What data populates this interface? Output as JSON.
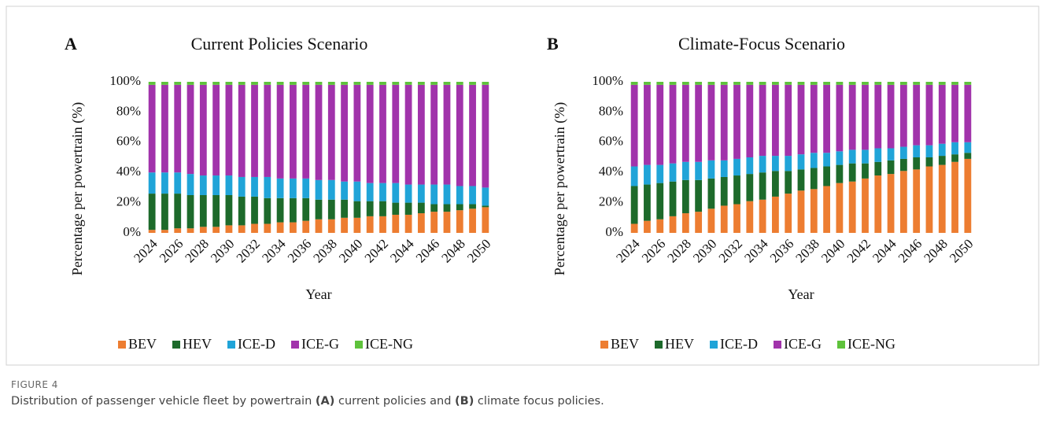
{
  "chart_data": [
    {
      "type": "stacked_bar",
      "panel": "A",
      "title": "Current Policies Scenario",
      "x_label": "Year",
      "y_label": "Percentage per powertrain (%)",
      "categories": [
        "2024",
        null,
        "2026",
        null,
        "2028",
        null,
        "2030",
        null,
        "2032",
        null,
        "2034",
        null,
        "2036",
        null,
        "2038",
        null,
        "2040",
        null,
        "2042",
        null,
        "2044",
        null,
        "2046",
        null,
        "2048",
        null,
        "2050"
      ],
      "ylim": [
        0,
        100
      ],
      "yticks": [
        {
          "value": 0,
          "label": "0%"
        },
        {
          "value": 20,
          "label": "20%"
        },
        {
          "value": 40,
          "label": "40%"
        },
        {
          "value": 60,
          "label": "60%"
        },
        {
          "value": 80,
          "label": "80%"
        },
        {
          "value": 100,
          "label": "100%"
        }
      ],
      "series": [
        {
          "name": "BEV",
          "color": "#ed7d31",
          "values": [
            2,
            2,
            3,
            3,
            4,
            4,
            5,
            5,
            6,
            6,
            7,
            7,
            8,
            9,
            9,
            10,
            10,
            11,
            11,
            12,
            12,
            13,
            14,
            14,
            15,
            16,
            17
          ]
        },
        {
          "name": "HEV",
          "color": "#1d6a2b",
          "values": [
            24,
            24,
            23,
            22,
            21,
            21,
            20,
            19,
            18,
            17,
            16,
            16,
            15,
            13,
            13,
            12,
            11,
            10,
            10,
            8,
            8,
            7,
            5,
            5,
            4,
            3,
            1
          ]
        },
        {
          "name": "ICE-D",
          "color": "#20a4d8",
          "values": [
            14,
            14,
            14,
            14,
            13,
            13,
            13,
            13,
            13,
            14,
            13,
            13,
            13,
            13,
            13,
            12,
            13,
            12,
            12,
            13,
            12,
            12,
            13,
            13,
            12,
            12,
            12
          ]
        },
        {
          "name": "ICE-G",
          "color": "#a133ab",
          "values": [
            58,
            58,
            58,
            59,
            60,
            60,
            60,
            61,
            61,
            61,
            62,
            62,
            62,
            63,
            63,
            64,
            64,
            65,
            65,
            65,
            66,
            66,
            66,
            66,
            67,
            67,
            68
          ]
        },
        {
          "name": "ICE-NG",
          "color": "#5ec23b",
          "values": [
            2,
            2,
            2,
            2,
            2,
            2,
            2,
            2,
            2,
            2,
            2,
            2,
            2,
            2,
            2,
            2,
            2,
            2,
            2,
            2,
            2,
            2,
            2,
            2,
            2,
            2,
            2
          ]
        }
      ]
    },
    {
      "type": "stacked_bar",
      "panel": "B",
      "title": "Climate-Focus Scenario",
      "x_label": "Year",
      "y_label": "Percentage per powertrain (%)",
      "categories": [
        "2024",
        null,
        "2026",
        null,
        "2028",
        null,
        "2030",
        null,
        "2032",
        null,
        "2034",
        null,
        "2036",
        null,
        "2038",
        null,
        "2040",
        null,
        "2042",
        null,
        "2044",
        null,
        "2046",
        null,
        "2048",
        null,
        "2050"
      ],
      "ylim": [
        0,
        100
      ],
      "yticks": [
        {
          "value": 0,
          "label": "0%"
        },
        {
          "value": 20,
          "label": "20%"
        },
        {
          "value": 40,
          "label": "40%"
        },
        {
          "value": 60,
          "label": "60%"
        },
        {
          "value": 80,
          "label": "80%"
        },
        {
          "value": 100,
          "label": "100%"
        }
      ],
      "series": [
        {
          "name": "BEV",
          "color": "#ed7d31",
          "values": [
            6,
            8,
            9,
            11,
            13,
            14,
            16,
            18,
            19,
            21,
            22,
            24,
            26,
            28,
            29,
            31,
            33,
            34,
            36,
            38,
            39,
            41,
            42,
            44,
            45,
            47,
            49
          ]
        },
        {
          "name": "HEV",
          "color": "#1d6a2b",
          "values": [
            25,
            24,
            24,
            23,
            22,
            21,
            20,
            19,
            19,
            18,
            18,
            17,
            15,
            14,
            14,
            13,
            12,
            12,
            10,
            9,
            9,
            8,
            8,
            6,
            6,
            5,
            4
          ]
        },
        {
          "name": "ICE-D",
          "color": "#20a4d8",
          "values": [
            13,
            13,
            12,
            12,
            12,
            12,
            12,
            11,
            11,
            11,
            11,
            10,
            10,
            10,
            10,
            9,
            9,
            9,
            9,
            9,
            8,
            8,
            8,
            8,
            8,
            8,
            7
          ]
        },
        {
          "name": "ICE-G",
          "color": "#a133ab",
          "values": [
            54,
            53,
            53,
            52,
            51,
            51,
            50,
            50,
            49,
            48,
            47,
            47,
            47,
            46,
            45,
            45,
            44,
            43,
            43,
            42,
            42,
            41,
            40,
            40,
            39,
            38,
            38
          ]
        },
        {
          "name": "ICE-NG",
          "color": "#5ec23b",
          "values": [
            2,
            2,
            2,
            2,
            2,
            2,
            2,
            2,
            2,
            2,
            2,
            2,
            2,
            2,
            2,
            2,
            2,
            2,
            2,
            2,
            2,
            2,
            2,
            2,
            2,
            2,
            2
          ]
        }
      ]
    }
  ],
  "caption": {
    "label": "FIGURE 4",
    "parts": [
      {
        "text": "Distribution of passenger vehicle fleet by powertrain ",
        "bold": false
      },
      {
        "text": "(A)",
        "bold": true
      },
      {
        "text": " current policies and ",
        "bold": false
      },
      {
        "text": "(B)",
        "bold": true
      },
      {
        "text": " climate focus policies.",
        "bold": false
      }
    ]
  }
}
